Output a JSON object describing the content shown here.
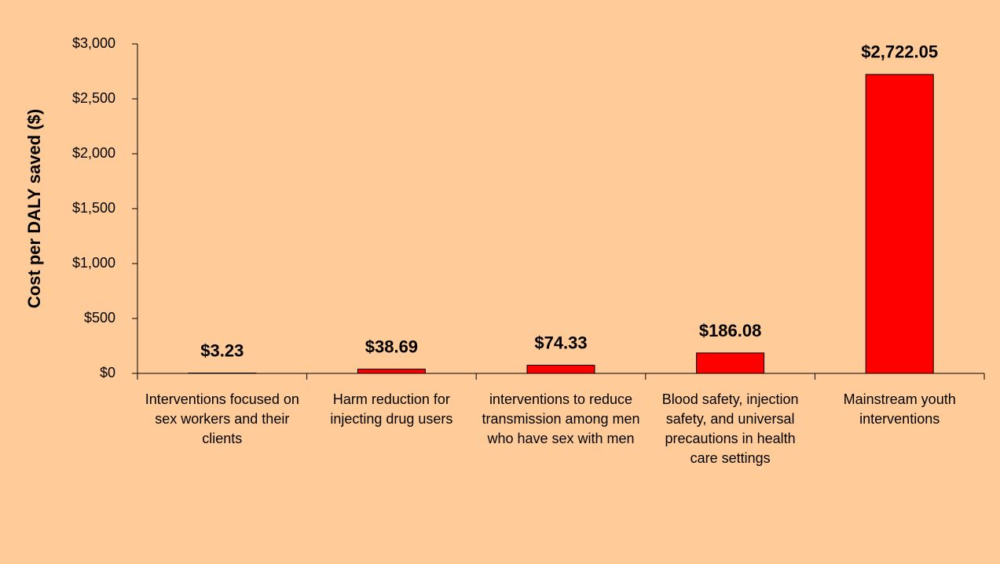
{
  "chart_data": {
    "type": "bar",
    "y_label": "Cost per DALY saved ($)",
    "categories": [
      "Interventions focused on sex workers and their clients",
      "Harm reduction for injecting drug users",
      "interventions to reduce transmission among men who have sex with men",
      "Blood safety, injection safety, and universal precautions in health care settings",
      "Mainstream youth interventions"
    ],
    "values": [
      3.23,
      38.69,
      74.33,
      186.08,
      2722.05
    ],
    "value_labels": [
      "$3.23",
      "$38.69",
      "$74.33",
      "$186.08",
      "$2,722.05"
    ],
    "color": "#ff0000",
    "ylim": [
      0,
      3000
    ],
    "yticks": [
      {
        "value": 0,
        "label": "$0"
      },
      {
        "value": 500,
        "label": "$500"
      },
      {
        "value": 1000,
        "label": "$1,000"
      },
      {
        "value": 1500,
        "label": "$1,500"
      },
      {
        "value": 2000,
        "label": "$2,000"
      },
      {
        "value": 2500,
        "label": "$2,500"
      },
      {
        "value": 3000,
        "label": "$3,000"
      }
    ],
    "grid": false
  }
}
